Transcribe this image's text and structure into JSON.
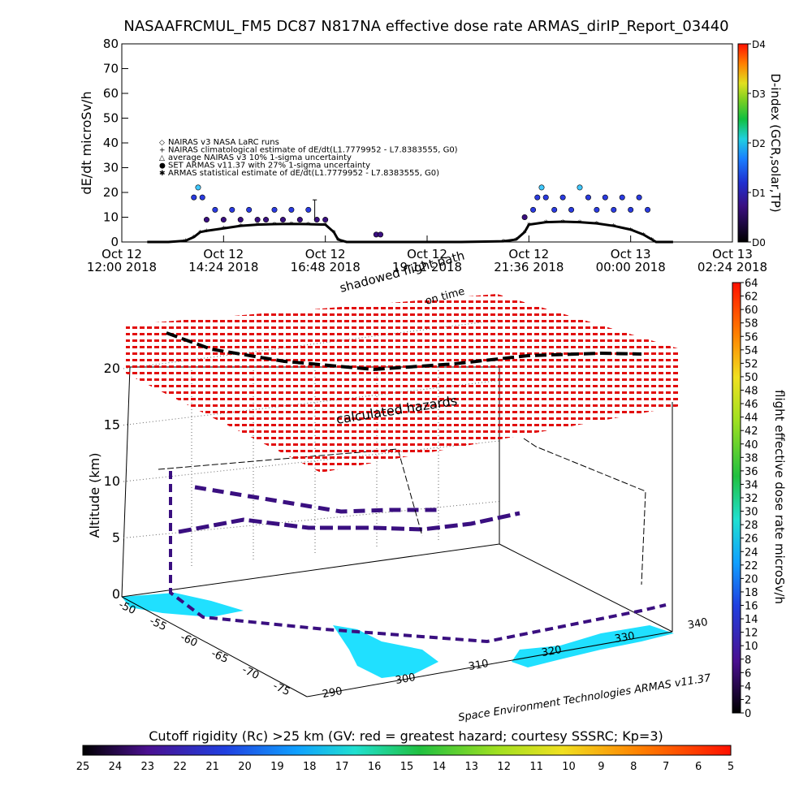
{
  "title": "NASAAFRCMUL_FM5 DC87 N817NA effective dose rate ARMAS_dirIP_Report_03440",
  "colors": {
    "series_black": "#000000",
    "series_indigo": "#3a0f80",
    "series_blue": "#2a3be0",
    "series_cyan": "#40c8ff",
    "grid_red": "#e00000",
    "ocean_cyan": "#20e0ff"
  },
  "chart_data": [
    {
      "type": "line",
      "name": "time-series",
      "ylabel": "dE/dt microSv/h",
      "ylim": [
        0,
        80
      ],
      "y_ticks": [
        "0",
        "10",
        "20",
        "30",
        "40",
        "50",
        "60",
        "70",
        "80"
      ],
      "x_ticks": [
        {
          "line1": "Oct 12",
          "line2": "12:00 2018",
          "h": 12.0
        },
        {
          "line1": "Oct 12",
          "line2": "14:24 2018",
          "h": 14.4
        },
        {
          "line1": "Oct 12",
          "line2": "16:48 2018",
          "h": 16.8
        },
        {
          "line1": "Oct 12",
          "line2": "19:12 2018",
          "h": 19.2
        },
        {
          "line1": "Oct 12",
          "line2": "21:36 2018",
          "h": 21.6
        },
        {
          "line1": "Oct 13",
          "line2": "00:00 2018",
          "h": 24.0
        },
        {
          "line1": "Oct 13",
          "line2": "02:24 2018",
          "h": 26.4
        }
      ],
      "xlim_hours": [
        12.0,
        26.4
      ],
      "legend": [
        "NAIRAS v3 NASA LaRC runs",
        "NAIRAS climatological estimate of dE/dt(L1.7779952 - L7.8383555, G0)",
        "average NAIRAS v3 10% 1-sigma uncertainty",
        "SET ARMAS v11.37 with 27% 1-sigma uncertainty",
        "ARMAS statistical estimate of dE/dt(L1.7779952 - L7.8383555, G0)"
      ],
      "right_axis": {
        "label": "D-index (GCR,solar,TP)",
        "ticks": [
          "D0",
          "D1",
          "D2",
          "D3",
          "D4"
        ],
        "tick_values": [
          0,
          1,
          2,
          3,
          4
        ]
      },
      "series": [
        {
          "name": "ARMAS statistical estimate",
          "points": [
            [
              12.6,
              0
            ],
            [
              13.1,
              0
            ],
            [
              13.5,
              0.5
            ],
            [
              13.7,
              2
            ],
            [
              13.85,
              4
            ],
            [
              14.0,
              4.5
            ],
            [
              14.4,
              5.5
            ],
            [
              14.8,
              6.5
            ],
            [
              15.2,
              7
            ],
            [
              15.6,
              7.2
            ],
            [
              16.0,
              7.3
            ],
            [
              16.4,
              7.2
            ],
            [
              16.8,
              7
            ],
            [
              17.0,
              4
            ],
            [
              17.1,
              1
            ],
            [
              17.3,
              0
            ],
            [
              18.0,
              0
            ],
            [
              18.5,
              0
            ],
            [
              19.0,
              0
            ],
            [
              20.0,
              0
            ],
            [
              21.0,
              0.3
            ],
            [
              21.3,
              1
            ],
            [
              21.5,
              4
            ],
            [
              21.6,
              7
            ],
            [
              22.0,
              8
            ],
            [
              22.4,
              8.2
            ],
            [
              22.8,
              8
            ],
            [
              23.2,
              7.5
            ],
            [
              23.6,
              6.5
            ],
            [
              24.0,
              5
            ],
            [
              24.3,
              3
            ],
            [
              24.5,
              1
            ],
            [
              24.6,
              0
            ],
            [
              25.0,
              0
            ]
          ]
        },
        {
          "name": "SET ARMAS v11.37",
          "points": [
            [
              13.7,
              18
            ],
            [
              13.8,
              22
            ],
            [
              13.9,
              18
            ],
            [
              14.0,
              9
            ],
            [
              14.2,
              13
            ],
            [
              14.4,
              9
            ],
            [
              14.6,
              13
            ],
            [
              14.8,
              9
            ],
            [
              15.0,
              13
            ],
            [
              15.2,
              9
            ],
            [
              15.4,
              9
            ],
            [
              15.6,
              13
            ],
            [
              15.8,
              9
            ],
            [
              16.0,
              13
            ],
            [
              16.2,
              9
            ],
            [
              16.4,
              13
            ],
            [
              16.6,
              9
            ],
            [
              16.8,
              9
            ],
            [
              18.0,
              3
            ],
            [
              18.1,
              3
            ],
            [
              21.5,
              10
            ],
            [
              21.7,
              13
            ],
            [
              21.8,
              18
            ],
            [
              21.9,
              22
            ],
            [
              22.0,
              18
            ],
            [
              22.2,
              13
            ],
            [
              22.4,
              18
            ],
            [
              22.6,
              13
            ],
            [
              22.8,
              22
            ],
            [
              23.0,
              18
            ],
            [
              23.2,
              13
            ],
            [
              23.4,
              18
            ],
            [
              23.6,
              13
            ],
            [
              23.8,
              18
            ],
            [
              24.0,
              13
            ],
            [
              24.2,
              18
            ],
            [
              24.4,
              13
            ]
          ]
        }
      ]
    },
    {
      "type": "scatter",
      "name": "3d-flight-track",
      "ylabel": "Altitude (km)",
      "z_ticks": [
        "0",
        "5",
        "10",
        "15",
        "20"
      ],
      "lon_ticks": [
        "290",
        "300",
        "310",
        "320",
        "330",
        "340"
      ],
      "lat_ticks": [
        "-50",
        "-55",
        "-60",
        "-65",
        "-70",
        "-75"
      ],
      "annotations": [
        "shadowed flight path",
        "on time",
        "calculated hazards"
      ],
      "credit": "Space Environment Technologies ARMAS v11.37",
      "right_axis": {
        "label": "flight effective dose rate microSv/h",
        "ticks": [
          "0",
          "2",
          "4",
          "6",
          "8",
          "10",
          "12",
          "14",
          "16",
          "18",
          "20",
          "22",
          "24",
          "26",
          "28",
          "30",
          "32",
          "34",
          "36",
          "38",
          "40",
          "42",
          "44",
          "46",
          "48",
          "50",
          "52",
          "54",
          "56",
          "58",
          "60",
          "62",
          "64"
        ],
        "range": [
          0,
          64
        ]
      },
      "bottom_colorbar": {
        "title": "Cutoff rigidity (Rc) >25 km (GV: red = greatest hazard; courtesy SSSRC; Kp=3)",
        "ticks": [
          "25",
          "24",
          "23",
          "22",
          "21",
          "20",
          "19",
          "18",
          "17",
          "16",
          "15",
          "14",
          "13",
          "12",
          "11",
          "10",
          "9",
          "8",
          "7",
          "6",
          "5"
        ]
      }
    }
  ]
}
